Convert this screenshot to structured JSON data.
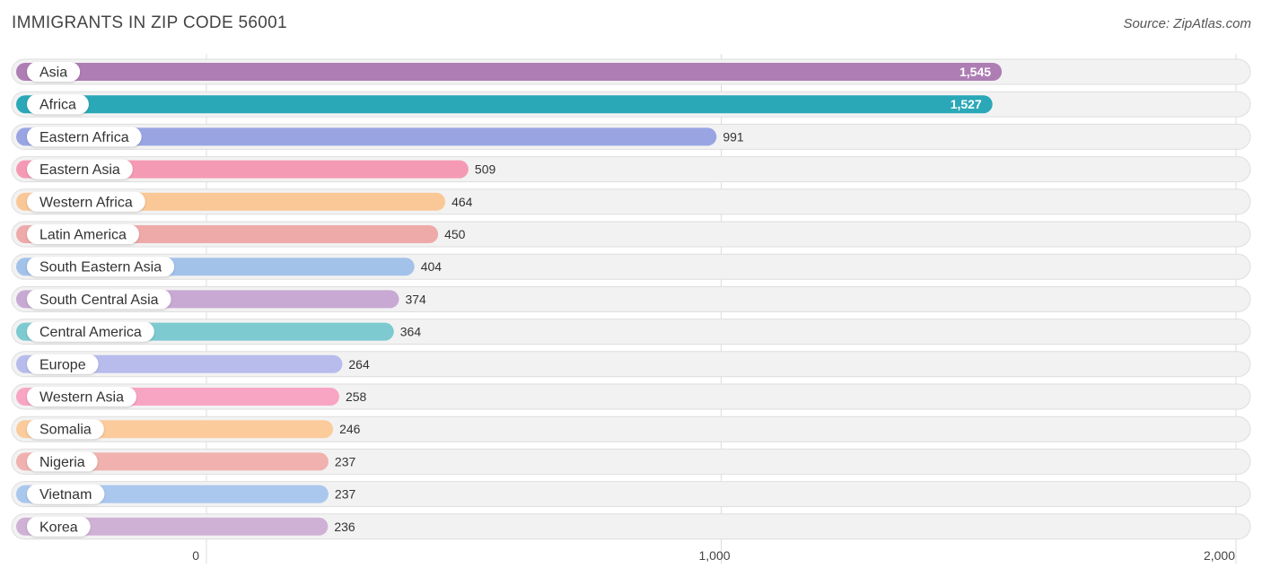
{
  "header": {
    "title": "IMMIGRANTS IN ZIP CODE 56001",
    "source": "Source: ZipAtlas.com"
  },
  "chart_data": {
    "type": "bar",
    "orientation": "horizontal",
    "categories": [
      "Asia",
      "Africa",
      "Eastern Africa",
      "Eastern Asia",
      "Western Africa",
      "Latin America",
      "South Eastern Asia",
      "South Central Asia",
      "Central America",
      "Europe",
      "Western Asia",
      "Somalia",
      "Nigeria",
      "Vietnam",
      "Korea"
    ],
    "values": [
      1545,
      1527,
      991,
      509,
      464,
      450,
      404,
      374,
      364,
      264,
      258,
      246,
      237,
      237,
      236
    ],
    "value_labels": [
      "1,545",
      "1,527",
      "991",
      "509",
      "464",
      "450",
      "404",
      "374",
      "364",
      "264",
      "258",
      "246",
      "237",
      "237",
      "236"
    ],
    "colors": [
      "#ae7db4",
      "#2aa8b8",
      "#99a5e3",
      "#f59ab5",
      "#fac896",
      "#eeaaa9",
      "#a3c2ea",
      "#c8a9d3",
      "#7dcad1",
      "#b7bcec",
      "#f8a5c3",
      "#fbcb9c",
      "#f1b1ae",
      "#aac7ee",
      "#d0b1d6"
    ],
    "xlim": [
      0,
      2000
    ],
    "xticks": [
      0,
      1000,
      2000
    ],
    "xtick_labels": [
      "0",
      "1,000",
      "2,000"
    ],
    "grid": true
  }
}
